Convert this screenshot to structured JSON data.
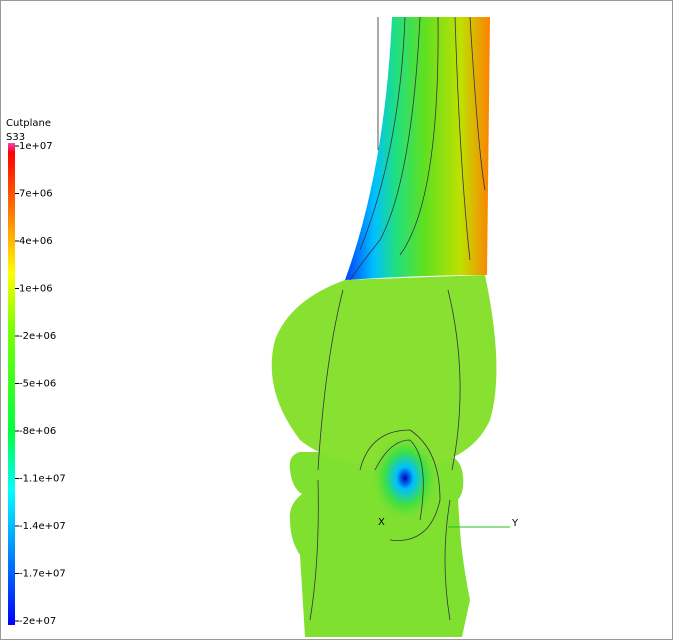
{
  "legend": {
    "title": "Cutplane",
    "variable": "S33",
    "ticks": [
      "1e+07",
      "7e+06",
      "4e+06",
      "1e+06",
      "-2e+06",
      "-5e+06",
      "-8e+06",
      "-1.1e+07",
      "-1.4e+07",
      "-1.7e+07",
      "-2e+07"
    ]
  },
  "axes": {
    "x": "X",
    "y": "Y"
  }
}
